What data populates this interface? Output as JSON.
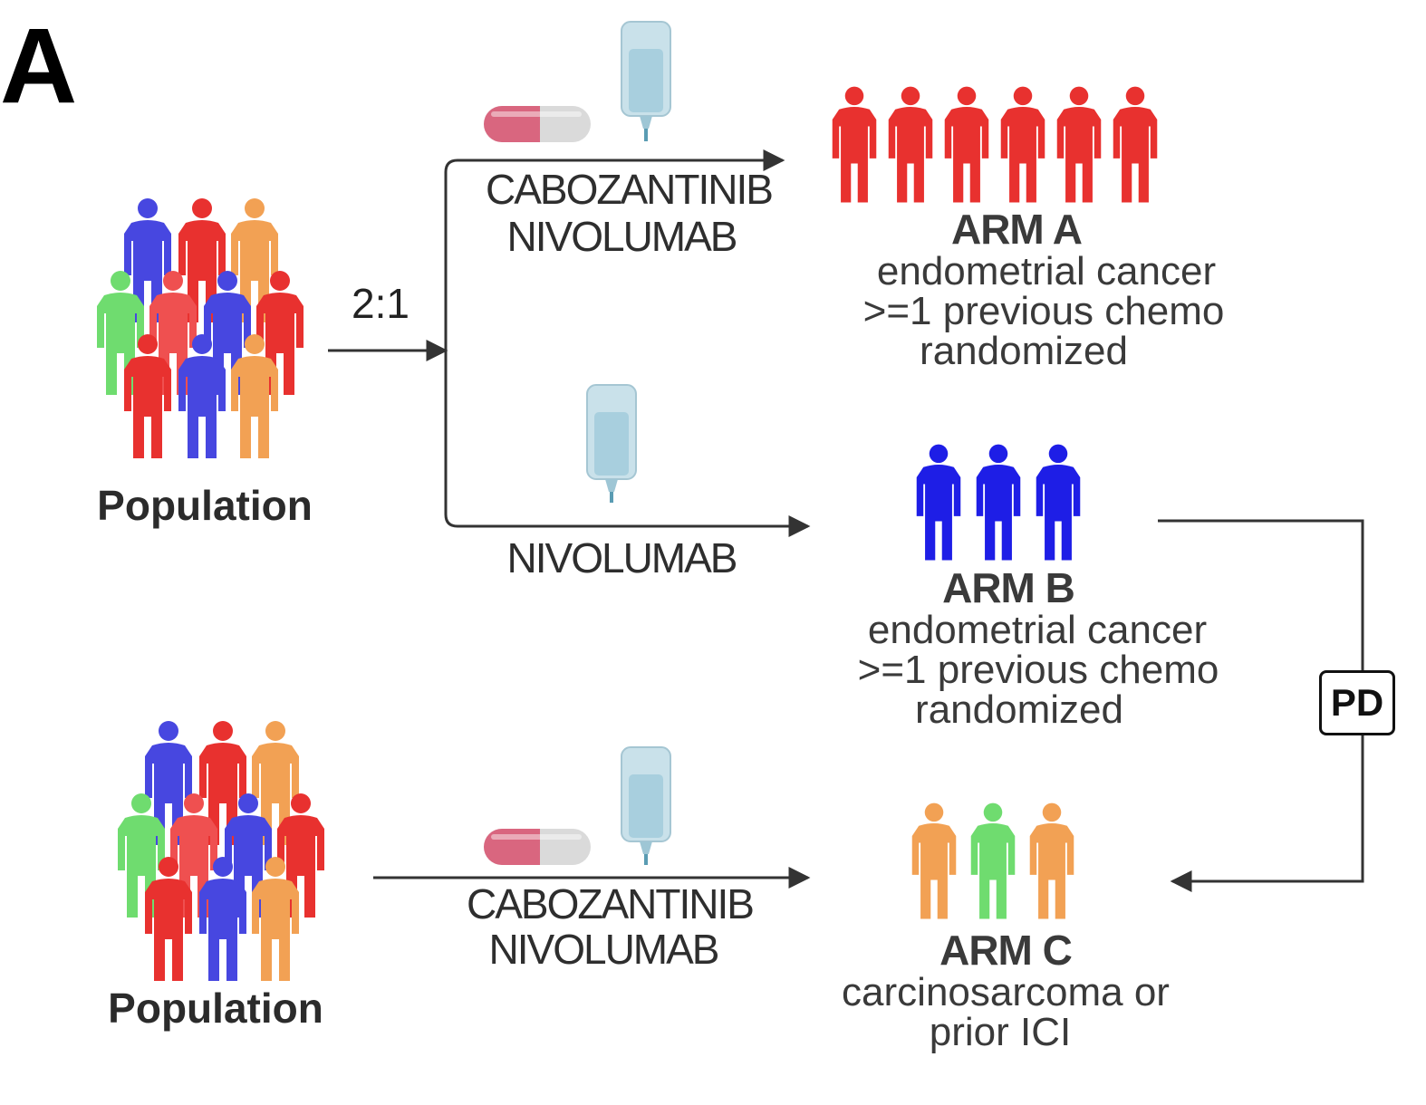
{
  "panel_label": "A",
  "colors": {
    "red": "#e8312f",
    "red_light": "#ef5050",
    "blue": "#4747e0",
    "blue_dark": "#1e1ee6",
    "orange": "#f2a154",
    "green": "#6fdc6f",
    "line": "#333333",
    "pill_red": "#d9667f",
    "pill_white": "#dadada",
    "iv_bag": "#b9d9e6"
  },
  "icons": [
    "person-icon",
    "pill-icon",
    "iv-bag-icon",
    "arrow-icon"
  ],
  "population_top": {
    "label": "Population"
  },
  "population_bottom": {
    "label": "Population"
  },
  "randomization_ratio": "2:1",
  "route_top": {
    "line1": "CABOZANTINIB",
    "line2": "NIVOLUMAB"
  },
  "route_middle": {
    "line1": "NIVOLUMAB"
  },
  "route_bottom": {
    "line1": "CABOZANTINIB",
    "line2": "NIVOLUMAB"
  },
  "arm_a": {
    "title": "ARM A",
    "desc1": "endometrial cancer",
    "desc2": ">=1 previous chemo",
    "desc3": "randomized",
    "person_colors": [
      "red",
      "red",
      "red",
      "red",
      "red",
      "red"
    ]
  },
  "arm_b": {
    "title": "ARM B",
    "desc1": "endometrial cancer",
    "desc2": ">=1 previous chemo",
    "desc3": "randomized",
    "person_colors": [
      "blue_dark",
      "blue_dark",
      "blue_dark"
    ]
  },
  "arm_c": {
    "title": "ARM C",
    "desc1": "carcinosarcoma or",
    "desc2": "prior ICI",
    "person_colors": [
      "orange",
      "green",
      "orange"
    ]
  },
  "crossover": {
    "label": "PD"
  }
}
